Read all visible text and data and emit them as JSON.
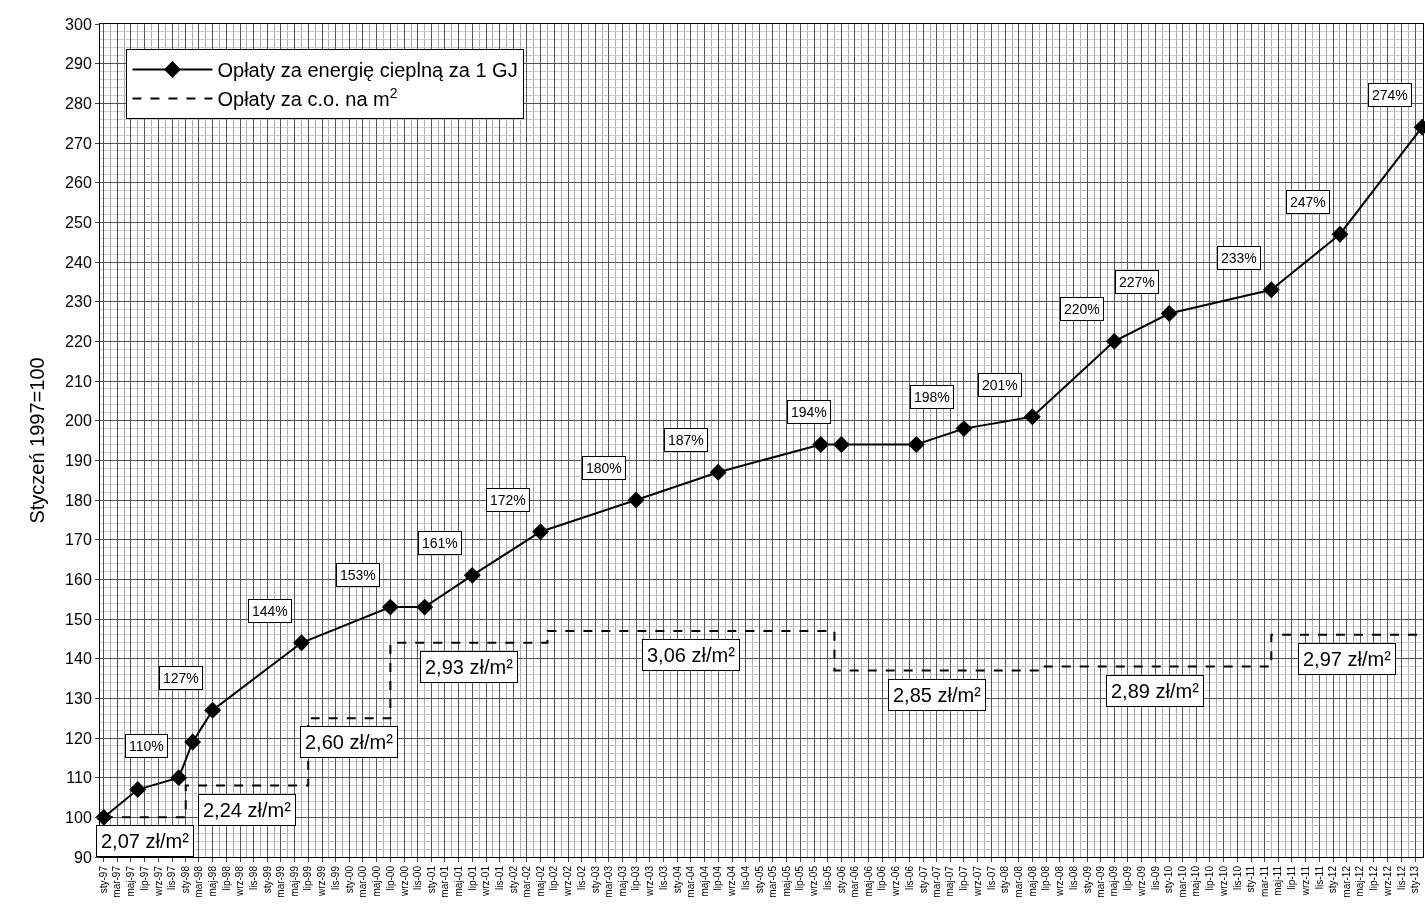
{
  "chart_data": {
    "type": "line",
    "ylabel": "Styczeń 1997=100",
    "xlim": [
      "1996-12-15",
      "2013-02-05"
    ],
    "ylim": [
      90,
      300
    ],
    "yticks": [
      90,
      100,
      110,
      120,
      130,
      140,
      150,
      160,
      170,
      180,
      190,
      200,
      210,
      220,
      230,
      240,
      250,
      260,
      270,
      280,
      290,
      300
    ],
    "xticks": [
      {
        "value": "1997-01",
        "label": "sty-97"
      },
      {
        "value": "1997-03",
        "label": "mar-97"
      },
      {
        "value": "1997-05",
        "label": "maj-97"
      },
      {
        "value": "1997-07",
        "label": "lip-97"
      },
      {
        "value": "1997-09",
        "label": "wrz-97"
      },
      {
        "value": "1997-11",
        "label": "lis-97"
      },
      {
        "value": "1998-01",
        "label": "sty-98"
      },
      {
        "value": "1998-03",
        "label": "mar-98"
      },
      {
        "value": "1998-05",
        "label": "maj-98"
      },
      {
        "value": "1998-07",
        "label": "lip-98"
      },
      {
        "value": "1998-09",
        "label": "wrz-98"
      },
      {
        "value": "1998-11",
        "label": "lis-98"
      },
      {
        "value": "1999-01",
        "label": "sty-99"
      },
      {
        "value": "1999-03",
        "label": "mar-99"
      },
      {
        "value": "1999-05",
        "label": "maj-99"
      },
      {
        "value": "1999-07",
        "label": "lip-99"
      },
      {
        "value": "1999-09",
        "label": "wrz-99"
      },
      {
        "value": "1999-11",
        "label": "lis-99"
      },
      {
        "value": "2000-01",
        "label": "sty-00"
      },
      {
        "value": "2000-03",
        "label": "mar-00"
      },
      {
        "value": "2000-05",
        "label": "maj-00"
      },
      {
        "value": "2000-07",
        "label": "lip-00"
      },
      {
        "value": "2000-09",
        "label": "wrz-00"
      },
      {
        "value": "2000-11",
        "label": "lis-00"
      },
      {
        "value": "2001-01",
        "label": "sty-01"
      },
      {
        "value": "2001-03",
        "label": "mar-01"
      },
      {
        "value": "2001-05",
        "label": "maj-01"
      },
      {
        "value": "2001-07",
        "label": "lip-01"
      },
      {
        "value": "2001-09",
        "label": "wrz-01"
      },
      {
        "value": "2001-11",
        "label": "lis-01"
      },
      {
        "value": "2002-01",
        "label": "sty-02"
      },
      {
        "value": "2002-03",
        "label": "mar-02"
      },
      {
        "value": "2002-05",
        "label": "maj-02"
      },
      {
        "value": "2002-07",
        "label": "lip-02"
      },
      {
        "value": "2002-09",
        "label": "wrz-02"
      },
      {
        "value": "2002-11",
        "label": "lis-02"
      },
      {
        "value": "2003-01",
        "label": "sty-03"
      },
      {
        "value": "2003-03",
        "label": "mar-03"
      },
      {
        "value": "2003-05",
        "label": "maj-03"
      },
      {
        "value": "2003-07",
        "label": "lip-03"
      },
      {
        "value": "2003-09",
        "label": "wrz-03"
      },
      {
        "value": "2003-11",
        "label": "lis-03"
      },
      {
        "value": "2004-01",
        "label": "sty-04"
      },
      {
        "value": "2004-03",
        "label": "mar-04"
      },
      {
        "value": "2004-05",
        "label": "maj-04"
      },
      {
        "value": "2004-07",
        "label": "lip-04"
      },
      {
        "value": "2004-09",
        "label": "wrz-04"
      },
      {
        "value": "2004-11",
        "label": "lis-04"
      },
      {
        "value": "2005-01",
        "label": "sty-05"
      },
      {
        "value": "2005-03",
        "label": "mar-05"
      },
      {
        "value": "2005-05",
        "label": "maj-05"
      },
      {
        "value": "2005-07",
        "label": "lip-05"
      },
      {
        "value": "2005-09",
        "label": "wrz-05"
      },
      {
        "value": "2005-11",
        "label": "lis-05"
      },
      {
        "value": "2006-01",
        "label": "sty-06"
      },
      {
        "value": "2006-03",
        "label": "mar-06"
      },
      {
        "value": "2006-05",
        "label": "maj-06"
      },
      {
        "value": "2006-07",
        "label": "lip-06"
      },
      {
        "value": "2006-09",
        "label": "wrz-06"
      },
      {
        "value": "2006-11",
        "label": "lis-06"
      },
      {
        "value": "2007-01",
        "label": "sty-07"
      },
      {
        "value": "2007-03",
        "label": "mar-07"
      },
      {
        "value": "2007-05",
        "label": "maj-07"
      },
      {
        "value": "2007-07",
        "label": "lip-07"
      },
      {
        "value": "2007-09",
        "label": "wrz-07"
      },
      {
        "value": "2007-11",
        "label": "lis-07"
      },
      {
        "value": "2008-01",
        "label": "sty-08"
      },
      {
        "value": "2008-03",
        "label": "mar-08"
      },
      {
        "value": "2008-05",
        "label": "maj-08"
      },
      {
        "value": "2008-07",
        "label": "lip-08"
      },
      {
        "value": "2008-09",
        "label": "wrz-08"
      },
      {
        "value": "2008-11",
        "label": "lis-08"
      },
      {
        "value": "2009-01",
        "label": "sty-09"
      },
      {
        "value": "2009-03",
        "label": "mar-09"
      },
      {
        "value": "2009-05",
        "label": "maj-09"
      },
      {
        "value": "2009-07",
        "label": "lip-09"
      },
      {
        "value": "2009-09",
        "label": "wrz-09"
      },
      {
        "value": "2009-11",
        "label": "lis-09"
      },
      {
        "value": "2010-01",
        "label": "sty-10"
      },
      {
        "value": "2010-03",
        "label": "mar-10"
      },
      {
        "value": "2010-05",
        "label": "maj-10"
      },
      {
        "value": "2010-07",
        "label": "lip-10"
      },
      {
        "value": "2010-09",
        "label": "wrz-10"
      },
      {
        "value": "2010-11",
        "label": "lis-10"
      },
      {
        "value": "2011-01",
        "label": "sty-11"
      },
      {
        "value": "2011-03",
        "label": "mar-11"
      },
      {
        "value": "2011-05",
        "label": "maj-11"
      },
      {
        "value": "2011-07",
        "label": "lip-11"
      },
      {
        "value": "2011-09",
        "label": "wrz-11"
      },
      {
        "value": "2011-11",
        "label": "lis-11"
      },
      {
        "value": "2012-01",
        "label": "sty-12"
      },
      {
        "value": "2012-03",
        "label": "mar-12"
      },
      {
        "value": "2012-05",
        "label": "maj-12"
      },
      {
        "value": "2012-07",
        "label": "lip-12"
      },
      {
        "value": "2012-09",
        "label": "wrz-12"
      },
      {
        "value": "2012-11",
        "label": "lis-12"
      },
      {
        "value": "2013-01",
        "label": "sty-13"
      }
    ],
    "grid": true,
    "legend": "top left",
    "series": [
      {
        "name": "Opłaty za energię cieplną za 1 GJ",
        "color": "#000000",
        "type": "line",
        "marker": "diamond",
        "line_style": "solid",
        "x": [
          "1997-01",
          "1997-06",
          "1997-12",
          "1998-02",
          "1998-05",
          "1999-06",
          "2000-07",
          "2000-12",
          "2001-07",
          "2002-05",
          "2003-07",
          "2004-07",
          "2005-10",
          "2006-01",
          "2006-12",
          "2007-07",
          "2008-05",
          "2009-05",
          "2010-01",
          "2011-04",
          "2012-02",
          "2013-02"
        ],
        "values": [
          100,
          107,
          110,
          119,
          127,
          144,
          153,
          153,
          161,
          172,
          180,
          187,
          194,
          194,
          194,
          198,
          201,
          220,
          227,
          233,
          247,
          274
        ],
        "value_labels": [
          null,
          null,
          "110%",
          null,
          "127%",
          "144%",
          "153%",
          null,
          "161%",
          "172%",
          "180%",
          "187%",
          null,
          "194%",
          null,
          "198%",
          "201%",
          "220%",
          "227%",
          "233%",
          "247%",
          "274%"
        ]
      },
      {
        "name": "Opłaty za c.o. na m$^{2}$",
        "color": "#000000",
        "type": "step",
        "marker": "none",
        "line_style": "dashed",
        "x": [
          "1997-01",
          "1998-01",
          "1999-07",
          "2000-07",
          "2002-06",
          "2005-12",
          "2008-06",
          "2011-04",
          "2013-02"
        ],
        "values": [
          100,
          108,
          125,
          144,
          147,
          137,
          138,
          146,
          146
        ]
      }
    ],
    "annotations": [
      "2,07 zł/m²",
      "2,24 zł/m²",
      "2,60 zł/m²",
      "2,93 zł/m²",
      "3,06 zł/m²",
      "2,85 zł/m²",
      "2,89 zł/m²",
      "2,97 zł/m²"
    ]
  }
}
